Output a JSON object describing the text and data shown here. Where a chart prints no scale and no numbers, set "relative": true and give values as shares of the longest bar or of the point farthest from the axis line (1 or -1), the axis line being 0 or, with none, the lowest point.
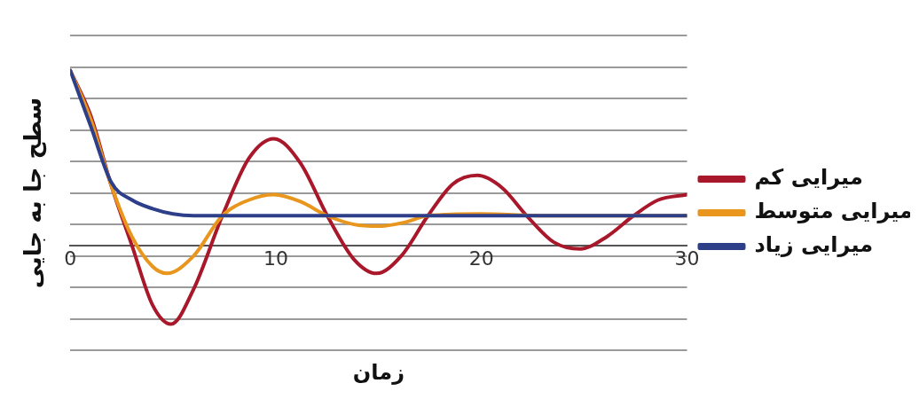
{
  "chart_data": {
    "type": "line",
    "relative": true,
    "xlabel": "زمان",
    "ylabel": "سطح جا به جایی",
    "xlim": [
      0,
      30
    ],
    "xticks": [
      0,
      10,
      20,
      30
    ],
    "grid": "y",
    "legend": "right",
    "marker": "none",
    "line_style": "solid",
    "series": [
      {
        "name": "میرایی کم",
        "color": "#a8182a",
        "x": [
          0,
          1,
          2,
          3,
          4,
          4.9,
          6,
          7.4,
          8.7,
          9.9,
          11.2,
          12.5,
          13.8,
          14.9,
          16.1,
          17.4,
          18.6,
          19.8,
          21,
          22.2,
          23.5,
          24.8,
          26.1,
          27.4,
          28.6,
          30
        ],
        "values": [
          1,
          0.74,
          0.34,
          0,
          -0.34,
          -0.45,
          -0.25,
          0.17,
          0.5,
          0.61,
          0.47,
          0.17,
          -0.08,
          -0.16,
          -0.06,
          0.17,
          0.35,
          0.4,
          0.33,
          0.17,
          0.02,
          -0.02,
          0.05,
          0.17,
          0.26,
          0.29
        ]
      },
      {
        "name": "میرایی متوسط",
        "color": "#e8961e",
        "x": [
          0,
          1,
          2,
          3,
          4,
          4.7,
          6,
          7.4,
          8.7,
          9.9,
          11.2,
          12.5,
          13.8,
          15,
          16.2,
          17.4,
          20,
          23,
          30
        ],
        "values": [
          1,
          0.72,
          0.34,
          0.05,
          -0.12,
          -0.16,
          -0.06,
          0.17,
          0.26,
          0.29,
          0.25,
          0.17,
          0.12,
          0.11,
          0.13,
          0.17,
          0.18,
          0.17,
          0.17
        ]
      },
      {
        "name": "میرایی زیاد",
        "color": "#2e3f8a",
        "x": [
          0,
          1,
          2,
          3,
          4,
          5,
          6,
          8,
          30
        ],
        "values": [
          1,
          0.68,
          0.36,
          0.26,
          0.21,
          0.18,
          0.17,
          0.17,
          0.17
        ]
      }
    ]
  }
}
